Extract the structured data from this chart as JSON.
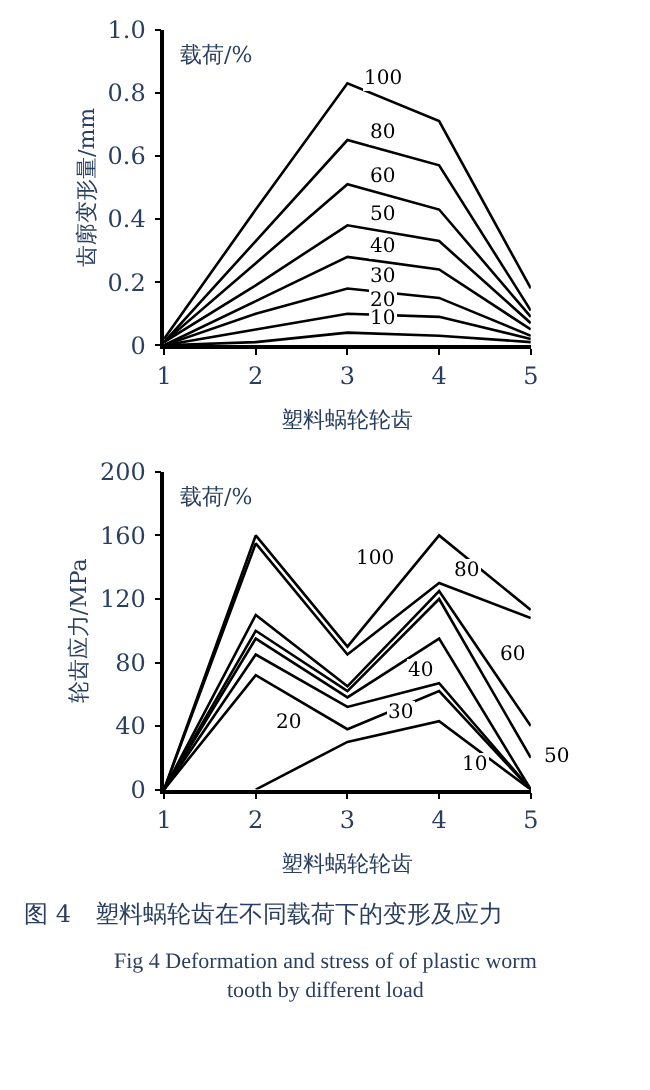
{
  "chart_data": [
    {
      "type": "line",
      "xlabel": "塑料蜗轮轮齿",
      "ylabel": "齿廓变形量/mm",
      "annotations": [
        "载荷/%"
      ],
      "x": [
        1,
        2,
        3,
        4,
        5
      ],
      "xlim": [
        1,
        5
      ],
      "xticks": [
        1,
        2,
        3,
        4,
        5
      ],
      "ylim": [
        0,
        1
      ],
      "yticks": [
        0,
        0.2,
        0.4,
        0.6,
        0.8,
        {
          "value": 1,
          "label": "1.0"
        }
      ],
      "grid": false,
      "marker": "none",
      "line_style": "solid",
      "series": [
        {
          "name": "100",
          "color": "#000000",
          "values": [
            0.02,
            0.43,
            0.83,
            0.71,
            0.18
          ]
        },
        {
          "name": "80",
          "color": "#000000",
          "values": [
            0.01,
            0.33,
            0.65,
            0.57,
            0.11
          ]
        },
        {
          "name": "60",
          "color": "#000000",
          "values": [
            0.01,
            0.26,
            0.51,
            0.43,
            0.09
          ]
        },
        {
          "name": "50",
          "color": "#000000",
          "values": [
            0.01,
            0.19,
            0.38,
            0.33,
            0.07
          ]
        },
        {
          "name": "40",
          "color": "#000000",
          "values": [
            0,
            0.14,
            0.28,
            0.24,
            0.05
          ]
        },
        {
          "name": "30",
          "color": "#000000",
          "values": [
            0,
            0.1,
            0.18,
            0.15,
            0.03
          ]
        },
        {
          "name": "20",
          "color": "#000000",
          "values": [
            0,
            0.05,
            0.1,
            0.09,
            0.02
          ]
        },
        {
          "name": "10",
          "color": "#000000",
          "values": [
            0,
            0.01,
            0.04,
            0.03,
            0.01
          ]
        }
      ]
    },
    {
      "type": "line",
      "xlabel": "塑料蜗轮轮齿",
      "ylabel": "轮齿应力/MPa",
      "annotations": [
        "载荷/%",
        "图 4　塑料蜗轮齿在不同载荷下的变形及应力",
        "Fig 4 Deformation and stress of of plastic worm tooth by different load"
      ],
      "x": [
        1,
        2,
        3,
        4,
        5
      ],
      "xlim": [
        1,
        5
      ],
      "xticks": [
        1,
        2,
        3,
        4,
        5
      ],
      "ylim": [
        0,
        200
      ],
      "yticks": [
        0,
        40,
        80,
        120,
        160,
        200
      ],
      "grid": false,
      "marker": "none",
      "line_style": "solid",
      "series": [
        {
          "name": "100",
          "color": "#000000",
          "values": [
            0,
            160,
            90,
            160,
            113
          ]
        },
        {
          "name": "80",
          "color": "#000000",
          "values": [
            0,
            155,
            85,
            130,
            108
          ]
        },
        {
          "name": "60",
          "color": "#000000",
          "values": [
            0,
            110,
            65,
            125,
            40
          ]
        },
        {
          "name": "50",
          "color": "#000000",
          "values": [
            0,
            100,
            62,
            120,
            20
          ]
        },
        {
          "name": "40",
          "color": "#000000",
          "values": [
            0,
            95,
            58,
            95,
            0
          ]
        },
        {
          "name": "30",
          "color": "#000000",
          "values": [
            0,
            85,
            52,
            67,
            0
          ]
        },
        {
          "name": "20",
          "color": "#000000",
          "values": [
            0,
            72,
            38,
            62,
            0
          ]
        },
        {
          "name": "10",
          "color": "#000000",
          "x": [
            2,
            3,
            4,
            5
          ],
          "values": [
            0,
            30,
            43,
            0
          ]
        }
      ]
    }
  ]
}
